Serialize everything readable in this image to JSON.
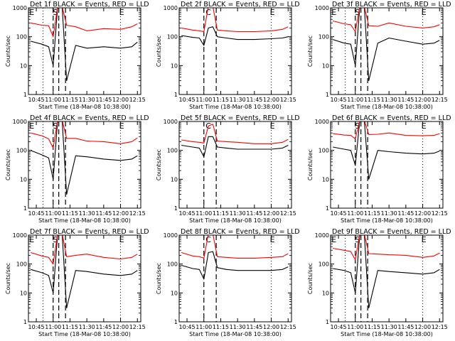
{
  "chart_data": [
    {
      "type": "line",
      "title": "Det 1f BLACK = Events, RED = LLD",
      "xlabel": "Start Time (18-Mar-08 10:38:00)",
      "ylabel": "Counts/sec",
      "yscale": "log",
      "ylim": [
        1,
        1000
      ],
      "yticks": [
        "1",
        "10",
        "100",
        "1000"
      ],
      "xticks": [
        "10:45",
        "11:00",
        "11:15",
        "11:30",
        "11:45",
        "12:00",
        "12:15"
      ],
      "markers": [
        "E",
        "S",
        "E"
      ],
      "x": [
        "10:40",
        "10:50",
        "10:56",
        "11:00",
        "11:04",
        "11:08",
        "11:12",
        "11:20",
        "11:30",
        "11:45",
        "12:00",
        "12:10",
        "12:15"
      ],
      "series": [
        {
          "name": "Events",
          "color": "#000000",
          "values": [
            70,
            55,
            45,
            10,
            1300,
            1300,
            3,
            50,
            40,
            45,
            40,
            45,
            65
          ]
        },
        {
          "name": "LLD",
          "color": "#ff0000",
          "values": [
            300,
            250,
            240,
            100,
            2000,
            2000,
            250,
            220,
            160,
            190,
            180,
            220,
            280
          ]
        }
      ]
    },
    {
      "type": "line",
      "title": "Det 2f BLACK = Events, RED = LLD",
      "xlabel": "Start Time (18-Mar-08 10:38:00)",
      "ylabel": "Counts/sec",
      "yscale": "log",
      "ylim": [
        1,
        1000
      ],
      "yticks": [
        "1",
        "10",
        "100",
        "1000"
      ],
      "xticks": [
        "10:45",
        "11:00",
        "11:15",
        "11:30",
        "11:45",
        "12:00",
        "12:15"
      ],
      "markers": [
        "C",
        "E"
      ],
      "x": [
        "10:40",
        "10:50",
        "10:56",
        "11:00",
        "11:04",
        "11:08",
        "11:12",
        "11:20",
        "11:30",
        "11:45",
        "12:00",
        "12:10",
        "12:15"
      ],
      "series": [
        {
          "name": "Events",
          "color": "#000000",
          "values": [
            110,
            95,
            90,
            50,
            200,
            220,
            100,
            90,
            80,
            80,
            85,
            90,
            100
          ]
        },
        {
          "name": "LLD",
          "color": "#ff0000",
          "values": [
            200,
            170,
            160,
            150,
            1600,
            2200,
            170,
            160,
            150,
            150,
            160,
            180,
            220
          ]
        }
      ]
    },
    {
      "type": "line",
      "title": "Det 3f BLACK = Events, RED = LLD",
      "xlabel": "Start Time (18-Mar-08 10:38:00)",
      "ylabel": "Counts/sec",
      "yscale": "log",
      "ylim": [
        1,
        1000
      ],
      "yticks": [
        "1",
        "10",
        "100",
        "1000"
      ],
      "xticks": [
        "10:45",
        "11:00",
        "11:15",
        "11:30",
        "11:45",
        "12:00",
        "12:15"
      ],
      "markers": [
        "E",
        "S",
        "E"
      ],
      "x": [
        "10:40",
        "10:50",
        "10:56",
        "11:00",
        "11:04",
        "11:08",
        "11:12",
        "11:20",
        "11:30",
        "11:45",
        "12:00",
        "12:10",
        "12:15"
      ],
      "series": [
        {
          "name": "Events",
          "color": "#000000",
          "values": [
            80,
            60,
            55,
            10,
            1500,
            1500,
            3,
            60,
            90,
            70,
            55,
            60,
            75
          ]
        },
        {
          "name": "LLD",
          "color": "#ff0000",
          "values": [
            350,
            280,
            260,
            150,
            2000,
            2000,
            240,
            230,
            300,
            230,
            200,
            220,
            260
          ]
        }
      ]
    },
    {
      "type": "line",
      "title": "Det 4f BLACK = Events, RED = LLD",
      "xlabel": "Start Time (18-Mar-08 10:38:00)",
      "ylabel": "Counts/sec",
      "yscale": "log",
      "ylim": [
        1,
        1000
      ],
      "yticks": [
        "1",
        "10",
        "100",
        "1000"
      ],
      "xticks": [
        "10:45",
        "11:00",
        "11:15",
        "11:30",
        "11:45",
        "12:00",
        "12:15"
      ],
      "markers": [
        "E",
        "S",
        "E"
      ],
      "x": [
        "10:40",
        "10:50",
        "10:56",
        "11:00",
        "11:04",
        "11:08",
        "11:12",
        "11:20",
        "11:30",
        "11:45",
        "12:00",
        "12:10",
        "12:15"
      ],
      "series": [
        {
          "name": "Events",
          "color": "#000000",
          "values": [
            100,
            70,
            55,
            10,
            1200,
            1200,
            3,
            65,
            60,
            50,
            45,
            50,
            65
          ]
        },
        {
          "name": "LLD",
          "color": "#ff0000",
          "values": [
            400,
            320,
            250,
            120,
            2000,
            2000,
            260,
            260,
            210,
            200,
            170,
            200,
            270
          ]
        }
      ]
    },
    {
      "type": "line",
      "title": "Det 5f BLACK = Events, RED = LLD",
      "xlabel": "Start Time (18-Mar-08 10:38:00)",
      "ylabel": "Counts/sec",
      "yscale": "log",
      "ylim": [
        1,
        1000
      ],
      "yticks": [
        "1",
        "10",
        "100",
        "1000"
      ],
      "xticks": [
        "10:45",
        "11:00",
        "11:15",
        "11:30",
        "11:45",
        "12:00",
        "12:15"
      ],
      "markers": [
        "C",
        "E"
      ],
      "x": [
        "10:40",
        "10:50",
        "10:56",
        "11:00",
        "11:04",
        "11:08",
        "11:12",
        "11:20",
        "11:30",
        "11:45",
        "12:00",
        "12:10",
        "12:15"
      ],
      "series": [
        {
          "name": "Events",
          "color": "#000000",
          "values": [
            150,
            130,
            120,
            60,
            300,
            300,
            130,
            120,
            110,
            110,
            110,
            120,
            150
          ]
        },
        {
          "name": "LLD",
          "color": "#ff0000",
          "values": [
            230,
            200,
            190,
            180,
            700,
            800,
            210,
            200,
            190,
            170,
            170,
            190,
            240
          ]
        }
      ]
    },
    {
      "type": "line",
      "title": "Det 6f BLACK = Events, RED = LLD",
      "xlabel": "Start Time (18-Mar-08 10:38:00)",
      "ylabel": "Counts/sec",
      "yscale": "log",
      "ylim": [
        1,
        1000
      ],
      "yticks": [
        "1",
        "10",
        "100",
        "1000"
      ],
      "xticks": [
        "10:45",
        "11:00",
        "11:15",
        "11:30",
        "11:45",
        "12:00",
        "12:15"
      ],
      "markers": [
        "S",
        "E"
      ],
      "x": [
        "10:40",
        "10:50",
        "10:56",
        "11:00",
        "11:04",
        "11:08",
        "11:12",
        "11:20",
        "11:30",
        "11:45",
        "12:00",
        "12:10",
        "12:15"
      ],
      "series": [
        {
          "name": "Events",
          "color": "#000000",
          "values": [
            130,
            110,
            100,
            30,
            1500,
            1500,
            10,
            100,
            90,
            80,
            75,
            80,
            95
          ]
        },
        {
          "name": "LLD",
          "color": "#ff0000",
          "values": [
            380,
            340,
            330,
            250,
            2000,
            2000,
            350,
            360,
            400,
            330,
            320,
            330,
            380
          ]
        }
      ]
    },
    {
      "type": "line",
      "title": "Det 7f BLACK = Events, RED = LLD",
      "xlabel": "Start Time (18-Mar-08 10:38:00)",
      "ylabel": "Counts/sec",
      "yscale": "log",
      "ylim": [
        1,
        1000
      ],
      "yticks": [
        "1",
        "10",
        "100",
        "1000"
      ],
      "xticks": [
        "10:45",
        "11:00",
        "11:15",
        "11:30",
        "11:45",
        "12:00",
        "12:15"
      ],
      "markers": [
        "E",
        "S",
        "E"
      ],
      "x": [
        "10:40",
        "10:50",
        "10:56",
        "11:00",
        "11:04",
        "11:08",
        "11:12",
        "11:20",
        "11:30",
        "11:45",
        "12:00",
        "12:10",
        "12:15"
      ],
      "series": [
        {
          "name": "Events",
          "color": "#000000",
          "values": [
            65,
            50,
            40,
            10,
            1300,
            1300,
            3,
            60,
            55,
            45,
            40,
            45,
            60
          ]
        },
        {
          "name": "LLD",
          "color": "#ff0000",
          "values": [
            250,
            190,
            170,
            100,
            2000,
            2000,
            180,
            200,
            220,
            170,
            150,
            170,
            220
          ]
        }
      ]
    },
    {
      "type": "line",
      "title": "Det 8f BLACK = Events, RED = LLD",
      "xlabel": "Start Time (18-Mar-08 10:38:00)",
      "ylabel": "Counts/sec",
      "yscale": "log",
      "ylim": [
        1,
        1000
      ],
      "yticks": [
        "1",
        "10",
        "100",
        "1000"
      ],
      "xticks": [
        "10:45",
        "11:00",
        "11:15",
        "11:30",
        "11:45",
        "12:00",
        "12:15"
      ],
      "markers": [
        "C",
        "E"
      ],
      "x": [
        "10:40",
        "10:50",
        "10:56",
        "11:00",
        "11:04",
        "11:08",
        "11:12",
        "11:20",
        "11:30",
        "11:45",
        "12:00",
        "12:10",
        "12:15"
      ],
      "series": [
        {
          "name": "Events",
          "color": "#000000",
          "values": [
            90,
            70,
            65,
            30,
            250,
            270,
            75,
            65,
            60,
            60,
            60,
            65,
            80
          ]
        },
        {
          "name": "LLD",
          "color": "#ff0000",
          "values": [
            250,
            190,
            180,
            160,
            1500,
            1900,
            180,
            170,
            160,
            160,
            170,
            180,
            230
          ]
        }
      ]
    },
    {
      "type": "line",
      "title": "Det 9f BLACK = Events, RED = LLD",
      "xlabel": "Start Time (18-Mar-08 10:38:00)",
      "ylabel": "Counts/sec",
      "yscale": "log",
      "ylim": [
        1,
        1000
      ],
      "yticks": [
        "1",
        "10",
        "100",
        "1000"
      ],
      "xticks": [
        "10:45",
        "11:00",
        "11:15",
        "11:30",
        "11:45",
        "12:00",
        "12:15"
      ],
      "markers": [
        "E",
        "S",
        "E"
      ],
      "x": [
        "10:40",
        "10:50",
        "10:56",
        "11:00",
        "11:04",
        "11:08",
        "11:12",
        "11:20",
        "11:30",
        "11:45",
        "12:00",
        "12:10",
        "12:15"
      ],
      "series": [
        {
          "name": "Events",
          "color": "#000000",
          "values": [
            70,
            60,
            50,
            10,
            1400,
            1400,
            3,
            60,
            55,
            50,
            45,
            50,
            65
          ]
        },
        {
          "name": "LLD",
          "color": "#ff0000",
          "values": [
            350,
            300,
            270,
            140,
            2000,
            2000,
            230,
            220,
            210,
            200,
            170,
            190,
            240
          ]
        }
      ]
    }
  ]
}
